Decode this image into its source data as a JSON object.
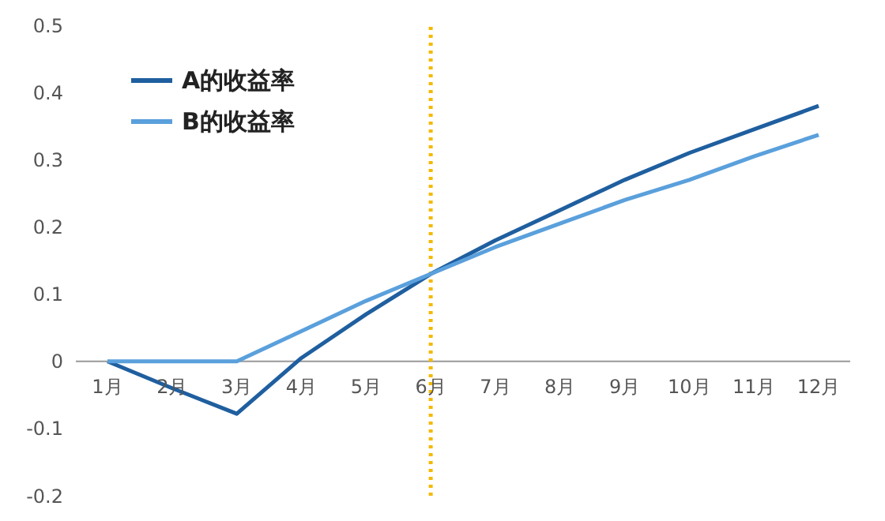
{
  "chart_data": {
    "type": "line",
    "categories": [
      "1月",
      "2月",
      "3月",
      "4月",
      "5月",
      "6月",
      "7月",
      "8月",
      "9月",
      "10月",
      "11月",
      "12月"
    ],
    "series": [
      {
        "name": "A的收益率",
        "color": "#1f5f9f",
        "values": [
          0,
          -0.04,
          -0.078,
          0.005,
          0.07,
          0.13,
          0.18,
          0.225,
          0.27,
          0.31,
          0.345,
          0.38
        ]
      },
      {
        "name": "B的收益率",
        "color": "#5aa0dc",
        "values": [
          0,
          0,
          0,
          0.045,
          0.09,
          0.13,
          0.17,
          0.205,
          0.24,
          0.27,
          0.305,
          0.337
        ]
      }
    ],
    "ylim": [
      -0.2,
      0.5
    ],
    "yticks": [
      -0.2,
      -0.1,
      0,
      0.1,
      0.2,
      0.3,
      0.4,
      0.5
    ],
    "ref_lines": [
      {
        "axis": "x",
        "value": "6月",
        "color": "#f5b800",
        "line_style": "dotted"
      }
    ],
    "legend": "top left",
    "marker": "none",
    "line_style": "solid"
  }
}
